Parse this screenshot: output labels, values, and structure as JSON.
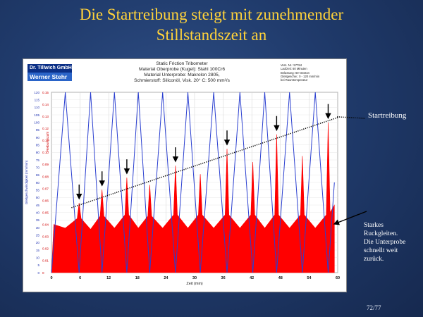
{
  "slide": {
    "title_line1": "Die Startreibung steigt mit zunehmender",
    "title_line2": "Stillstandszeit an",
    "page_number": "72/77"
  },
  "logo": {
    "company": "Dr. Tillwich GmbH",
    "person": "Werner Stehr"
  },
  "header": {
    "line1": "Static Friction Tribometer",
    "line2": "Material Oberprobe (Kugel): Stahl 100Cr6",
    "line3": "Material Unterprobe: Makrolon 2805,",
    "line4": "Schmierstoff: Siliconöl, Visk. 20° C: 500 mm²/s"
  },
  "test_info": {
    "line1": "Vers. Nr.: 57784",
    "line2": "Laufzeit: 60 Minuten",
    "line3": "Belastung: 60 Newton",
    "line4": "Gleitgeschw.: 0 - 120 mm/min",
    "line5": "bei Raumtemperatur"
  },
  "annotations": {
    "startreibung": "Startreibung",
    "rk_line1": "Starkes",
    "rk_line2": "Ruckgleiten.",
    "rk_line3": "Die Unterprobe",
    "rk_line4": "schnellt weit",
    "rk_line5": "zurück."
  },
  "colors": {
    "title": "#ffd23a",
    "friction": "#ff0000",
    "speed": "#2a3fd0",
    "trend": "#000000"
  },
  "chart_data": {
    "type": "line",
    "xlabel": "Zeit (min)",
    "ylabel_left": "Gleitgeschwindigkeit (mm/min)",
    "ylabel_right": "Reibungszahl",
    "x_ticks": [
      "0",
      "6",
      "12",
      "18",
      "24",
      "30",
      "36",
      "42",
      "48",
      "54",
      "60"
    ],
    "y_left_ticks": [
      "0",
      "5",
      "10",
      "15",
      "20",
      "25",
      "30",
      "35",
      "40",
      "45",
      "50",
      "55",
      "60",
      "65",
      "70",
      "75",
      "80",
      "85",
      "90",
      "95",
      "100",
      "105",
      "110",
      "115",
      "120"
    ],
    "y_right_ticks": [
      "0",
      "0.01",
      "0.02",
      "0.03",
      "0.04",
      "0.05",
      "0.06",
      "0.07",
      "0.08",
      "0.09",
      "0.10",
      "0.11",
      "0.12",
      "0.13",
      "0.14",
      "0.15"
    ],
    "xlim": [
      0,
      60
    ],
    "ylim_left": [
      0,
      120
    ],
    "ylim_right": [
      0,
      0.15
    ],
    "series": [
      {
        "name": "Gleitgeschwindigkeit",
        "x": [
          0,
          2.9,
          5.8,
          8.2,
          10.6,
          13.2,
          15.8,
          18.2,
          20.6,
          23.3,
          26,
          28.6,
          31.2,
          34,
          36.8,
          39.5,
          42.2,
          44.7,
          47.2,
          49.9,
          52.6,
          55.3,
          58,
          59.3
        ],
        "y": [
          0,
          120,
          0,
          120,
          0,
          120,
          0,
          120,
          0,
          120,
          0,
          120,
          0,
          120,
          0,
          120,
          0,
          120,
          0,
          120,
          0,
          120,
          0,
          60
        ]
      },
      {
        "name": "Startreibung",
        "x": [
          5.8,
          10.6,
          15.8,
          26.0,
          36.8,
          47.2,
          58.0
        ],
        "y": [
          0.058,
          0.069,
          0.079,
          0.089,
          0.103,
          0.115,
          0.125
        ]
      },
      {
        "name": "Reibungszahl",
        "x": [
          0,
          0.5,
          2.9,
          5.4,
          5.8,
          6.2,
          8.2,
          10.2,
          10.6,
          11.0,
          13.2,
          15.4,
          15.8,
          16.2,
          18.2,
          20.2,
          20.6,
          21.0,
          23.3,
          25.6,
          26.0,
          26.4,
          28.6,
          30.8,
          31.2,
          31.6,
          34.0,
          36.4,
          36.8,
          37.2,
          39.5,
          41.8,
          42.2,
          42.6,
          44.7,
          46.8,
          47.2,
          47.6,
          49.9,
          52.2,
          52.6,
          53.0,
          55.3,
          57.6,
          58.0,
          58.4,
          59.3
        ],
        "y": [
          0,
          0.04,
          0.037,
          0.045,
          0.058,
          0.045,
          0.036,
          0.047,
          0.069,
          0.047,
          0.037,
          0.048,
          0.079,
          0.048,
          0.037,
          0.047,
          0.073,
          0.047,
          0.037,
          0.048,
          0.089,
          0.048,
          0.037,
          0.048,
          0.082,
          0.048,
          0.037,
          0.048,
          0.103,
          0.048,
          0.037,
          0.048,
          0.092,
          0.048,
          0.037,
          0.048,
          0.115,
          0.048,
          0.037,
          0.048,
          0.097,
          0.048,
          0.037,
          0.048,
          0.125,
          0.05,
          0.056
        ]
      }
    ]
  }
}
